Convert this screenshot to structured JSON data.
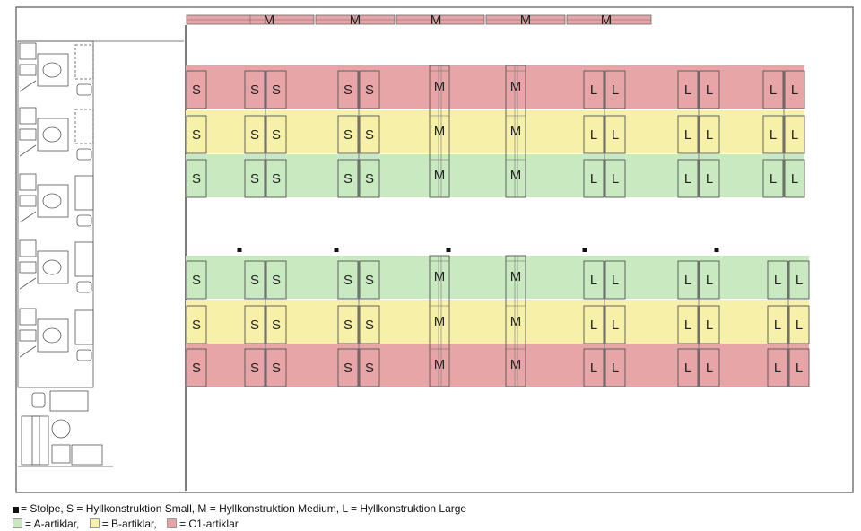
{
  "rows": {
    "top": [
      {
        "color": "#e8a5a8"
      },
      {
        "color": "#f7f0a8"
      },
      {
        "color": "#c9e9c0"
      }
    ],
    "bottom": [
      {
        "color": "#c9e9c0"
      },
      {
        "color": "#f7f0a8"
      },
      {
        "color": "#e8a5a8"
      }
    ]
  },
  "shelf_labels": {
    "small": "S",
    "medium": "M",
    "large": "L"
  },
  "top_units": [
    "S",
    "SS",
    "SS",
    "M",
    "M",
    "LL",
    "LL",
    "LL"
  ],
  "bottom_units": [
    "S",
    "SS",
    "SS",
    "M",
    "M",
    "LL",
    "LL",
    "LL"
  ],
  "wall_units": [
    "M",
    "M",
    "M",
    "M",
    "M"
  ],
  "legend": {
    "line1": "= Stolpe, S = Hyllkonstruktion Small, M = Hyllkonstruktion Medium, L = Hyllkonstruktion Large",
    "a_text": "= A-artiklar,",
    "b_text": "= B-artiklar,",
    "c_text": "= C1-artiklar",
    "a_color": "#c9e9c0",
    "b_color": "#f7f0a8",
    "c_color": "#e8a5a8"
  }
}
